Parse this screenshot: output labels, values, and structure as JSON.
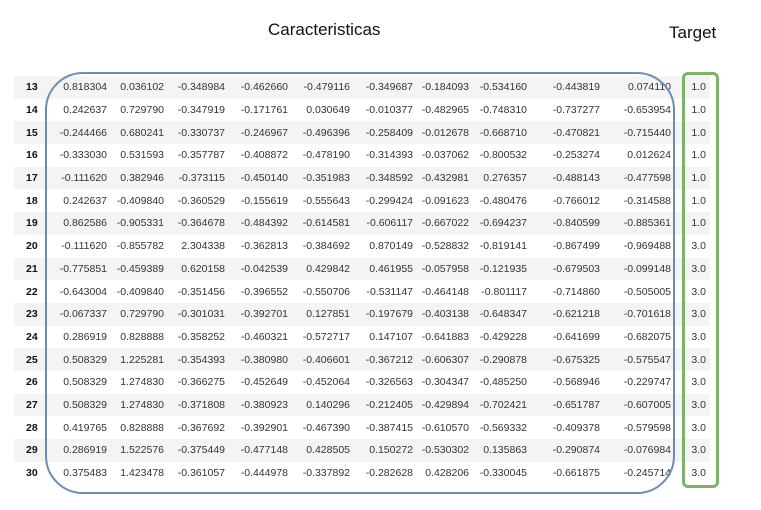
{
  "titles": {
    "features": "Caracteristicas",
    "target": "Target"
  },
  "colors": {
    "features_frame": "#6b8cb8",
    "target_frame": "#7fb26b"
  },
  "rows": [
    {
      "index": "13",
      "values": [
        "0.818304",
        "0.036102",
        "-0.348984",
        "-0.462660",
        "-0.479116",
        "-0.349687",
        "-0.184093",
        "-0.534160",
        "-0.443819",
        "0.074110"
      ],
      "target": "1.0"
    },
    {
      "index": "14",
      "values": [
        "0.242637",
        "0.729790",
        "-0.347919",
        "-0.171761",
        "0.030649",
        "-0.010377",
        "-0.482965",
        "-0.748310",
        "-0.737277",
        "-0.653954"
      ],
      "target": "1.0"
    },
    {
      "index": "15",
      "values": [
        "-0.244466",
        "0.680241",
        "-0.330737",
        "-0.246967",
        "-0.496396",
        "-0.258409",
        "-0.012678",
        "-0.668710",
        "-0.470821",
        "-0.715440"
      ],
      "target": "1.0"
    },
    {
      "index": "16",
      "values": [
        "-0.333030",
        "0.531593",
        "-0.357787",
        "-0.408872",
        "-0.478190",
        "-0.314393",
        "-0.037062",
        "-0.800532",
        "-0.253274",
        "0.012624"
      ],
      "target": "1.0"
    },
    {
      "index": "17",
      "values": [
        "-0.111620",
        "0.382946",
        "-0.373115",
        "-0.450140",
        "-0.351983",
        "-0.348592",
        "-0.432981",
        "0.276357",
        "-0.488143",
        "-0.477598"
      ],
      "target": "1.0"
    },
    {
      "index": "18",
      "values": [
        "0.242637",
        "-0.409840",
        "-0.360529",
        "-0.155619",
        "-0.555643",
        "-0.299424",
        "-0.091623",
        "-0.480476",
        "-0.766012",
        "-0.314588"
      ],
      "target": "1.0"
    },
    {
      "index": "19",
      "values": [
        "0.862586",
        "-0.905331",
        "-0.364678",
        "-0.484392",
        "-0.614581",
        "-0.606117",
        "-0.667022",
        "-0.694237",
        "-0.840599",
        "-0.885361"
      ],
      "target": "1.0"
    },
    {
      "index": "20",
      "values": [
        "-0.111620",
        "-0.855782",
        "2.304338",
        "-0.362813",
        "-0.384692",
        "0.870149",
        "-0.528832",
        "-0.819141",
        "-0.867499",
        "-0.969488"
      ],
      "target": "3.0"
    },
    {
      "index": "21",
      "values": [
        "-0.775851",
        "-0.459389",
        "0.620158",
        "-0.042539",
        "0.429842",
        "0.461955",
        "-0.057958",
        "-0.121935",
        "-0.679503",
        "-0.099148"
      ],
      "target": "3.0"
    },
    {
      "index": "22",
      "values": [
        "-0.643004",
        "-0.409840",
        "-0.351456",
        "-0.396552",
        "-0.550706",
        "-0.531147",
        "-0.464148",
        "-0.801117",
        "-0.714860",
        "-0.505005"
      ],
      "target": "3.0"
    },
    {
      "index": "23",
      "values": [
        "-0.067337",
        "0.729790",
        "-0.301031",
        "-0.392701",
        "0.127851",
        "-0.197679",
        "-0.403138",
        "-0.648347",
        "-0.621218",
        "-0.701618"
      ],
      "target": "3.0"
    },
    {
      "index": "24",
      "values": [
        "0.286919",
        "0.828888",
        "-0.358252",
        "-0.460321",
        "-0.572717",
        "0.147107",
        "-0.641883",
        "-0.429228",
        "-0.641699",
        "-0.682075"
      ],
      "target": "3.0"
    },
    {
      "index": "25",
      "values": [
        "0.508329",
        "1.225281",
        "-0.354393",
        "-0.380980",
        "-0.406601",
        "-0.367212",
        "-0.606307",
        "-0.290878",
        "-0.675325",
        "-0.575547"
      ],
      "target": "3.0"
    },
    {
      "index": "26",
      "values": [
        "0.508329",
        "1.274830",
        "-0.366275",
        "-0.452649",
        "-0.452064",
        "-0.326563",
        "-0.304347",
        "-0.485250",
        "-0.568946",
        "-0.229747"
      ],
      "target": "3.0"
    },
    {
      "index": "27",
      "values": [
        "0.508329",
        "1.274830",
        "-0.371808",
        "-0.380923",
        "0.140296",
        "-0.212405",
        "-0.429894",
        "-0.702421",
        "-0.651787",
        "-0.607005"
      ],
      "target": "3.0"
    },
    {
      "index": "28",
      "values": [
        "0.419765",
        "0.828888",
        "-0.367692",
        "-0.392901",
        "-0.467390",
        "-0.387415",
        "-0.610570",
        "-0.569332",
        "-0.409378",
        "-0.579598"
      ],
      "target": "3.0"
    },
    {
      "index": "29",
      "values": [
        "0.286919",
        "1.522576",
        "-0.375449",
        "-0.477148",
        "0.428505",
        "0.150272",
        "-0.530302",
        "0.135863",
        "-0.290874",
        "-0.076984"
      ],
      "target": "3.0"
    },
    {
      "index": "30",
      "values": [
        "0.375483",
        "1.423478",
        "-0.361057",
        "-0.444978",
        "-0.337892",
        "-0.282628",
        "0.428206",
        "-0.330045",
        "-0.661875",
        "-0.245714"
      ],
      "target": "3.0"
    }
  ]
}
